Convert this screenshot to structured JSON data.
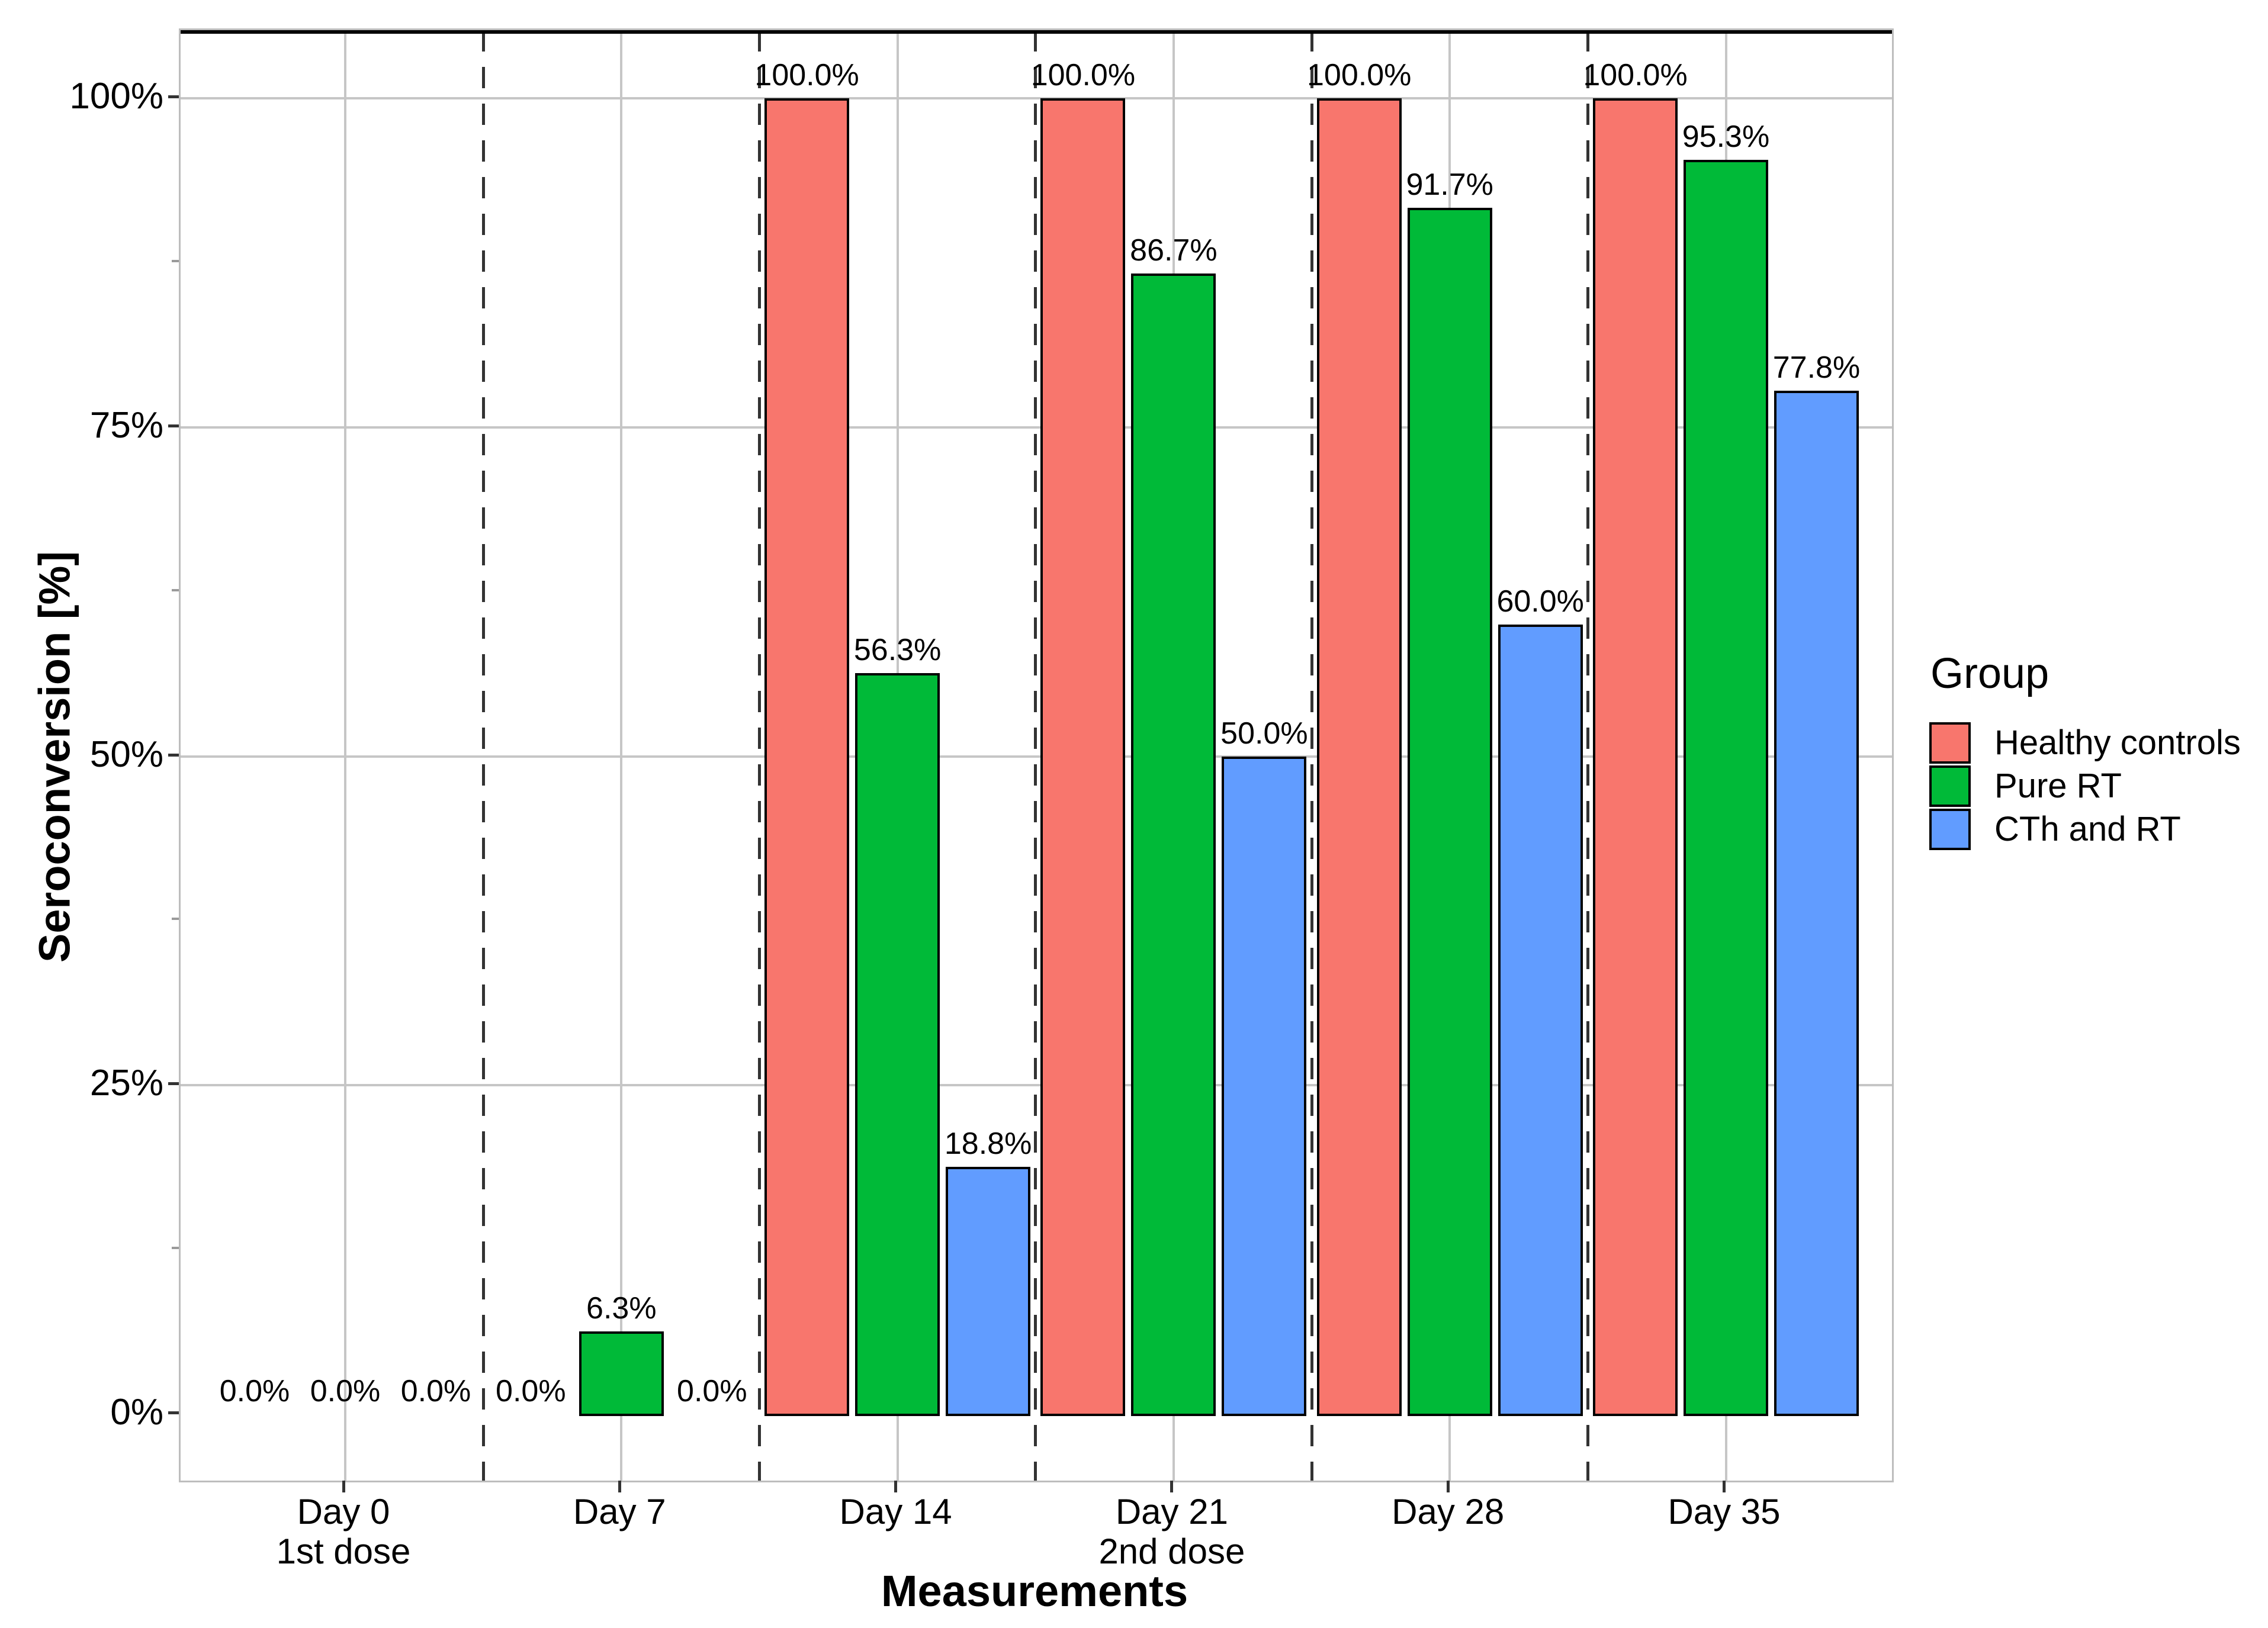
{
  "chart_data": {
    "type": "bar",
    "title": "",
    "xlabel": "Measurements",
    "ylabel": "Seroconversion [%]",
    "legend_title": "Group",
    "legend_position": "right",
    "grid": true,
    "ylim": [
      -5,
      105
    ],
    "categories": [
      {
        "label": "Day 0",
        "sublabel": "1st dose"
      },
      {
        "label": "Day 7",
        "sublabel": ""
      },
      {
        "label": "Day 14",
        "sublabel": ""
      },
      {
        "label": "Day 21",
        "sublabel": "2nd dose"
      },
      {
        "label": "Day 28",
        "sublabel": ""
      },
      {
        "label": "Day 35",
        "sublabel": ""
      }
    ],
    "series": [
      {
        "name": "Healthy controls",
        "color": "#F8766D",
        "values": [
          0.0,
          0.0,
          100.0,
          100.0,
          100.0,
          100.0
        ]
      },
      {
        "name": "Pure RT",
        "color": "#00BA38",
        "values": [
          0.0,
          6.3,
          56.3,
          86.7,
          91.7,
          95.3
        ]
      },
      {
        "name": "CTh and RT",
        "color": "#619CFF",
        "values": [
          0.0,
          0.0,
          18.8,
          50.0,
          60.0,
          77.8
        ]
      }
    ],
    "bar_value_labels": [
      [
        "0.0%",
        "0.0%",
        "0.0%"
      ],
      [
        "0.0%",
        "6.3%",
        "0.0%"
      ],
      [
        "100.0%",
        "56.3%",
        "18.8%"
      ],
      [
        "100.0%",
        "86.7%",
        "50.0%"
      ],
      [
        "100.0%",
        "91.7%",
        "60.0%"
      ],
      [
        "100.0%",
        "95.3%",
        "77.8%"
      ]
    ],
    "y_ticks": [
      {
        "label": "0%",
        "value": 0
      },
      {
        "label": "25%",
        "value": 25
      },
      {
        "label": "50%",
        "value": 50
      },
      {
        "label": "75%",
        "value": 75
      },
      {
        "label": "100%",
        "value": 100
      }
    ],
    "y_minor_ticks": [
      12.5,
      37.5,
      62.5,
      87.5
    ],
    "separators_between_categories": true
  },
  "colors": {
    "background": "#FFFFFF",
    "grid": "#C6C6C6",
    "panel_border": "#BDBDBD",
    "separator": "#333333",
    "zero_line": "#000000",
    "bar_outline": "#000000",
    "text": "#000000"
  }
}
